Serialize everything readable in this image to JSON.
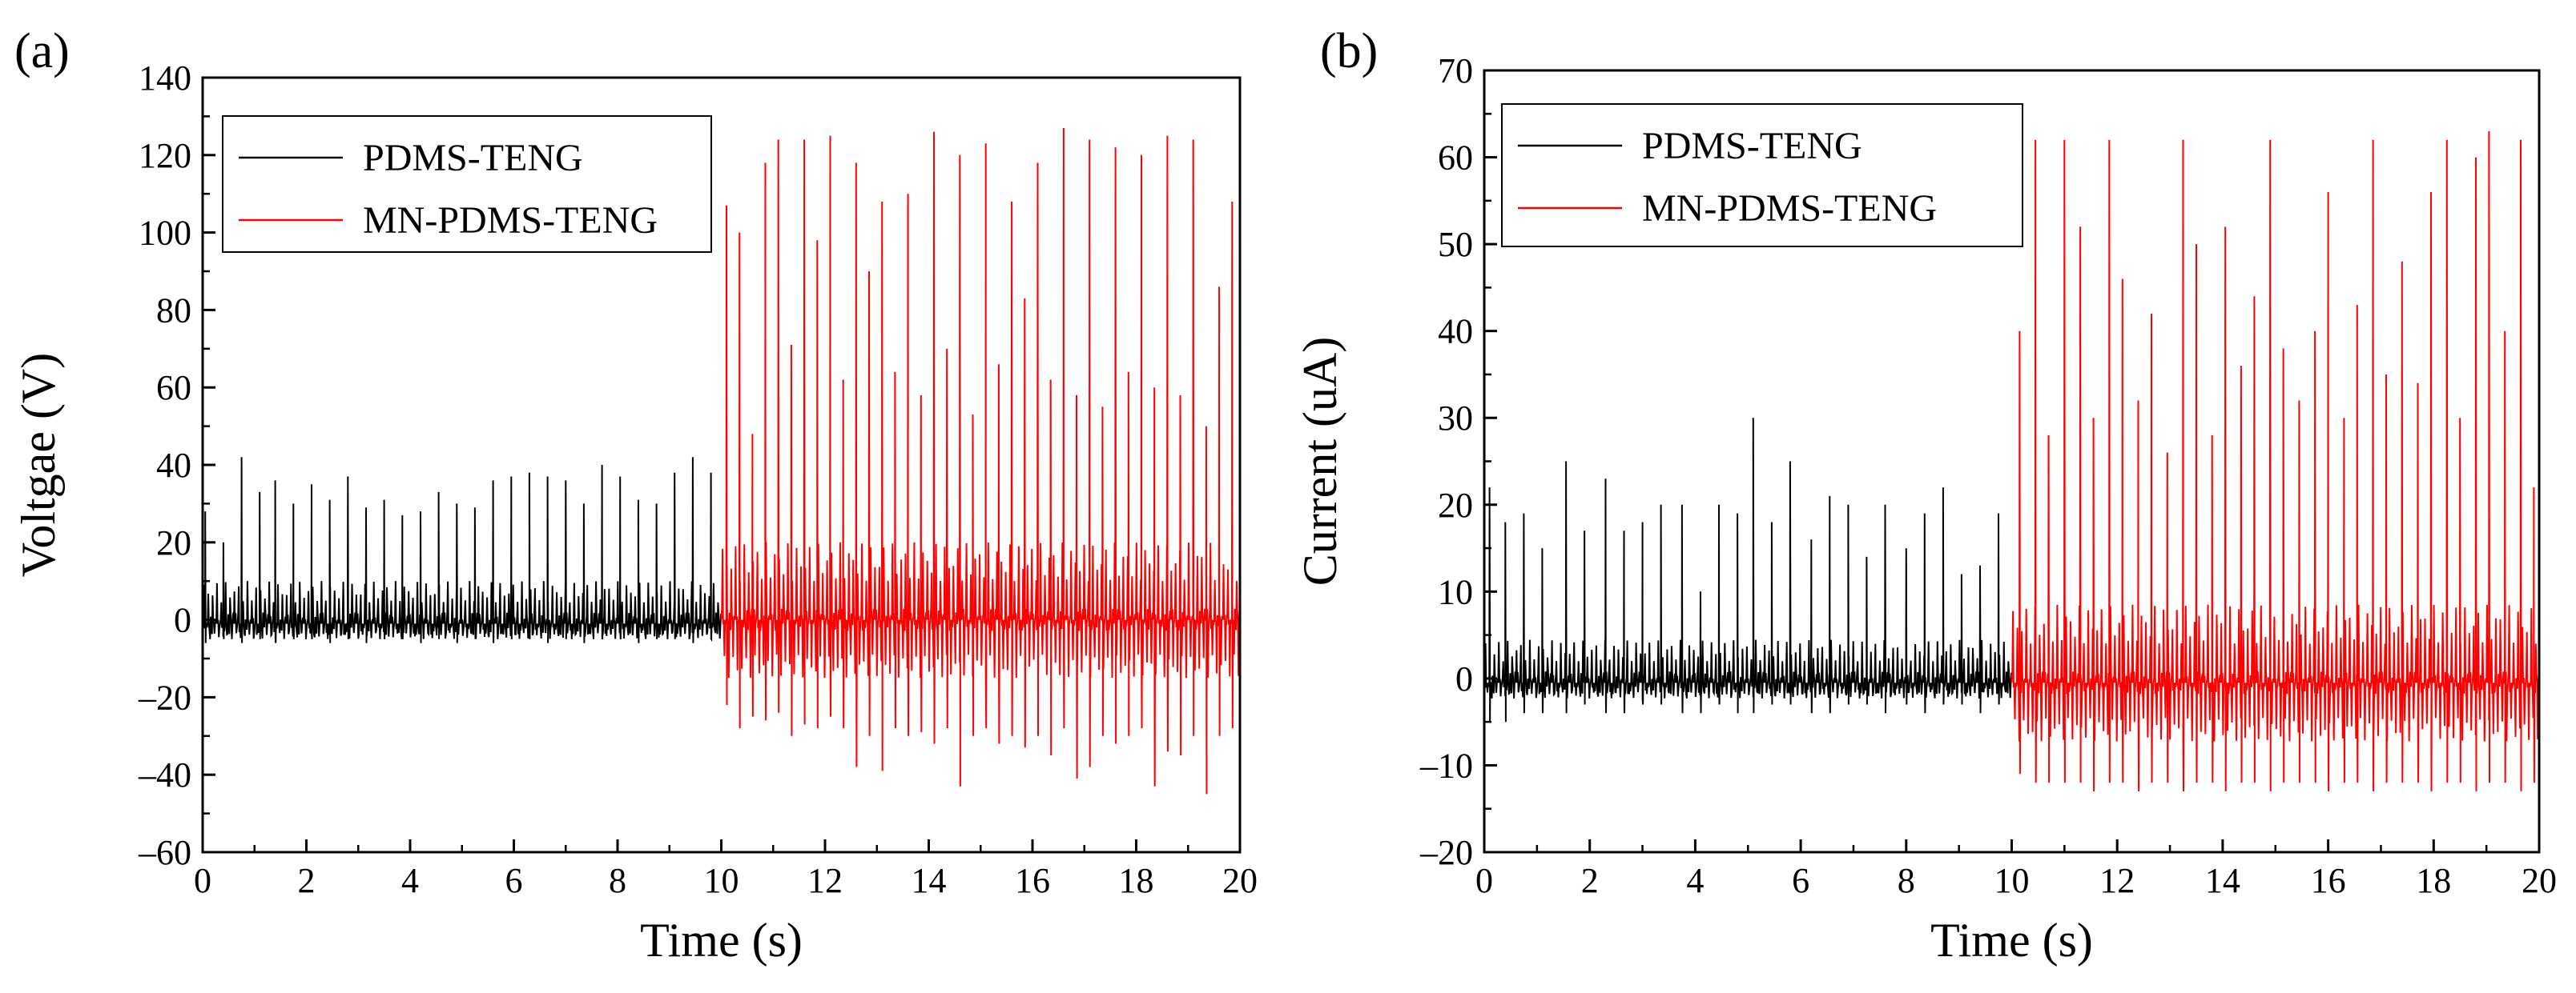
{
  "chart_data": [
    {
      "type": "line",
      "panel_label": "(a)",
      "xlabel": "Time (s)",
      "ylabel": "Voltgae (V)",
      "xlim": [
        0,
        20
      ],
      "ylim": [
        -60,
        140
      ],
      "xticks": [
        0,
        2,
        4,
        6,
        8,
        10,
        12,
        14,
        16,
        18,
        20
      ],
      "yticks": [
        -60,
        -40,
        -20,
        0,
        20,
        40,
        60,
        80,
        100,
        120,
        140
      ],
      "grid": false,
      "legend_position": "top-left",
      "series": [
        {
          "name": "PDMS-TENG",
          "color": "#000000",
          "t_range": [
            0,
            10
          ],
          "peak_times": [
            0.05,
            0.4,
            0.75,
            1.1,
            1.4,
            1.75,
            2.1,
            2.45,
            2.8,
            3.15,
            3.5,
            3.85,
            4.2,
            4.55,
            4.9,
            5.25,
            5.6,
            5.95,
            6.3,
            6.65,
            7.0,
            7.35,
            7.7,
            8.05,
            8.4,
            8.75,
            9.1,
            9.45,
            9.8
          ],
          "peak_values": [
            28,
            20,
            42,
            33,
            36,
            30,
            35,
            31,
            37,
            29,
            31,
            27,
            28,
            33,
            30,
            29,
            36,
            37,
            38,
            37,
            36,
            30,
            40,
            37,
            31,
            30,
            38,
            42,
            38
          ],
          "trough_values": [
            -6,
            -5,
            -6,
            -5,
            -6,
            -5,
            -5,
            -6,
            -5,
            -6,
            -5,
            -5,
            -6,
            -5,
            -6,
            -5,
            -6,
            -5,
            -5,
            -6,
            -5,
            -6,
            -5,
            -5,
            -6,
            -5,
            -5,
            -6,
            -5
          ],
          "baseline": -1
        },
        {
          "name": "MN-PDMS-TENG",
          "color": "#ff0000",
          "t_range": [
            10,
            20
          ],
          "peak_times": [
            10.1,
            10.35,
            10.6,
            10.85,
            11.1,
            11.35,
            11.6,
            11.85,
            12.1,
            12.35,
            12.6,
            12.85,
            13.1,
            13.35,
            13.6,
            13.85,
            14.1,
            14.35,
            14.6,
            14.85,
            15.1,
            15.35,
            15.6,
            15.85,
            16.1,
            16.35,
            16.6,
            16.85,
            17.1,
            17.35,
            17.6,
            17.85,
            18.1,
            18.35,
            18.6,
            18.85,
            19.1,
            19.35,
            19.6,
            19.85
          ],
          "peak_values": [
            107,
            100,
            48,
            118,
            124,
            71,
            124,
            98,
            125,
            62,
            118,
            90,
            108,
            64,
            110,
            58,
            126,
            70,
            120,
            53,
            123,
            66,
            108,
            83,
            118,
            62,
            127,
            58,
            124,
            55,
            122,
            64,
            120,
            60,
            125,
            58,
            124,
            50,
            86,
            108
          ],
          "trough_values": [
            -22,
            -28,
            -25,
            -26,
            -24,
            -30,
            -27,
            -28,
            -25,
            -28,
            -38,
            -30,
            -39,
            -28,
            -30,
            -29,
            -32,
            -28,
            -43,
            -30,
            -28,
            -32,
            -30,
            -33,
            -30,
            -35,
            -28,
            -41,
            -38,
            -30,
            -32,
            -30,
            -28,
            -43,
            -34,
            -35,
            -30,
            -45,
            -30,
            -28
          ],
          "baseline": 0
        }
      ]
    },
    {
      "type": "line",
      "panel_label": "(b)",
      "xlabel": "Time (s)",
      "ylabel": "Current (uA)",
      "xlim": [
        0,
        20
      ],
      "ylim": [
        -20,
        70
      ],
      "xticks": [
        0,
        2,
        4,
        6,
        8,
        10,
        12,
        14,
        16,
        18,
        20
      ],
      "yticks": [
        -20,
        -10,
        0,
        10,
        20,
        30,
        40,
        50,
        60,
        70
      ],
      "grid": false,
      "legend_position": "top-left",
      "series": [
        {
          "name": "PDMS-TENG",
          "color": "#000000",
          "t_range": [
            0,
            10
          ],
          "peak_times": [
            0.1,
            0.4,
            0.75,
            1.1,
            1.55,
            1.9,
            2.3,
            2.65,
            3.0,
            3.35,
            3.75,
            4.1,
            4.45,
            4.8,
            5.1,
            5.45,
            5.8,
            6.2,
            6.55,
            6.9,
            7.25,
            7.6,
            8.0,
            8.35,
            8.7,
            9.05,
            9.4,
            9.75
          ],
          "peak_values": [
            22,
            18,
            19,
            15,
            25,
            17,
            23,
            17,
            18,
            20,
            20,
            10,
            20,
            19,
            30,
            18,
            25,
            16,
            21,
            20,
            14,
            20,
            15,
            19,
            22,
            12,
            13,
            19
          ],
          "trough_values": [
            -5,
            -5,
            -4,
            -4,
            -4,
            -3,
            -4,
            -4,
            -3,
            -3,
            -4,
            -4,
            -3,
            -4,
            -4,
            -3,
            -3,
            -4,
            -4,
            -3,
            -3,
            -4,
            -3,
            -4,
            -3,
            -3,
            -4,
            -3
          ],
          "baseline": -0.5
        },
        {
          "name": "MN-PDMS-TENG",
          "color": "#ff0000",
          "t_range": [
            10,
            20
          ],
          "peak_times": [
            10.15,
            10.45,
            10.7,
            11.0,
            11.3,
            11.55,
            11.85,
            12.1,
            12.4,
            12.65,
            12.95,
            13.25,
            13.5,
            13.8,
            14.05,
            14.35,
            14.6,
            14.9,
            15.15,
            15.45,
            15.75,
            16.0,
            16.3,
            16.55,
            16.85,
            17.1,
            17.4,
            17.7,
            17.95,
            18.25,
            18.5,
            18.8,
            19.05,
            19.35,
            19.65,
            19.9
          ],
          "peak_values": [
            40,
            62,
            28,
            62,
            52,
            30,
            62,
            46,
            32,
            42,
            26,
            62,
            50,
            28,
            52,
            36,
            44,
            62,
            38,
            32,
            40,
            56,
            30,
            43,
            62,
            35,
            48,
            34,
            56,
            62,
            30,
            60,
            63,
            40,
            62,
            22
          ],
          "trough_values": [
            -11,
            -12,
            -12,
            -12,
            -12,
            -13,
            -12,
            -12,
            -13,
            -12,
            -12,
            -13,
            -12,
            -12,
            -13,
            -12,
            -12,
            -13,
            -12,
            -12,
            -12,
            -13,
            -12,
            -12,
            -13,
            -12,
            -12,
            -12,
            -13,
            -12,
            -12,
            -13,
            -12,
            -12,
            -13,
            -12
          ],
          "baseline": -0.5
        }
      ]
    }
  ]
}
